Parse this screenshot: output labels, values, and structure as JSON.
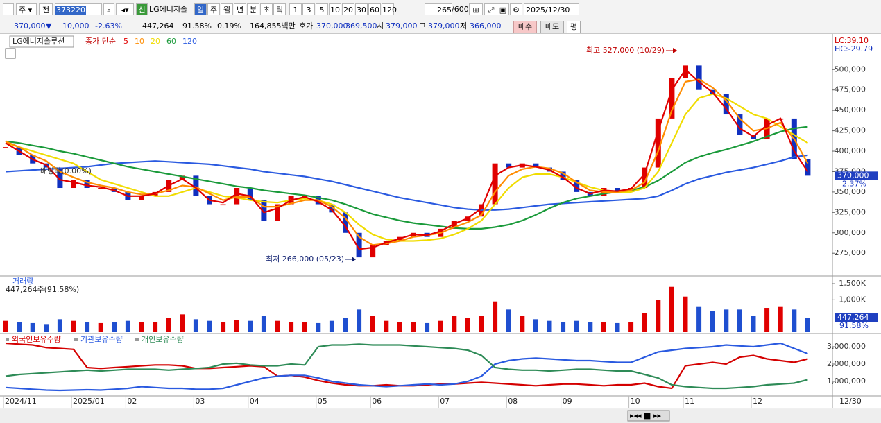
{
  "toolbar": {
    "market": "주",
    "prev": "전",
    "code": "373220",
    "new_badge": "신",
    "name": "LG에너지솔",
    "periods": [
      "일",
      "주",
      "월",
      "년",
      "분",
      "초",
      "틱"
    ],
    "intervals": [
      "1",
      "3",
      "5",
      "10",
      "20",
      "30",
      "60",
      "120"
    ],
    "count": "265",
    "count_max": "/600",
    "date": "2025/12/30"
  },
  "quote": {
    "price": "370,000",
    "arrow": "▼",
    "change": "10,000",
    "change_rate": "-2.63%",
    "volume": "447,264",
    "volume_ratio": "91.58%",
    "turnover": "0.19%",
    "amount": "164,855백만",
    "bid_label": "호가",
    "ask": "370,000",
    "bid": "369,500",
    "open_label": "시",
    "open": "379,000",
    "high_label": "고",
    "high": "379,000",
    "low_label": "저",
    "low": "366,000",
    "buy": "매수",
    "sell": "매도",
    "avg": "평"
  },
  "chart_data": [
    {
      "type": "candlestick",
      "title": "LG에너지솔루션",
      "legend_title": "종가 단순",
      "lc": "LC:39.10",
      "hc": "HC:-29.79",
      "current_label": "370,000",
      "current_change": "-2.37%",
      "dividend_note": "배당락(0.00%)",
      "high_note": "최고 527,000 (10/29)",
      "low_note": "최저 266,000 (05/23)",
      "up_color": "#e00000",
      "down_color": "#1030c0",
      "close": [
        405000,
        395000,
        385000,
        380000,
        355000,
        365000,
        355000,
        355000,
        350000,
        340000,
        345000,
        350000,
        365000,
        370000,
        345000,
        335000,
        335000,
        355000,
        340000,
        315000,
        335000,
        345000,
        345000,
        335000,
        325000,
        300000,
        270000,
        285000,
        290000,
        295000,
        300000,
        295000,
        305000,
        315000,
        320000,
        335000,
        385000,
        380000,
        385000,
        380000,
        375000,
        365000,
        350000,
        345000,
        355000,
        350000,
        355000,
        380000,
        440000,
        490000,
        505000,
        475000,
        470000,
        445000,
        420000,
        415000,
        440000,
        440000,
        390000,
        370000
      ],
      "series": [
        {
          "name": "120",
          "color": "#2a5ae0",
          "values": [
            375000,
            376000,
            377000,
            378000,
            379000,
            380000,
            381000,
            383000,
            385000,
            386000,
            387000,
            388000,
            387000,
            386000,
            385000,
            384000,
            382000,
            380000,
            378000,
            375000,
            373000,
            371000,
            369000,
            366000,
            363000,
            359000,
            355000,
            351000,
            347000,
            343000,
            340000,
            337000,
            334000,
            331000,
            329000,
            328000,
            328000,
            329000,
            331000,
            333000,
            335000,
            336000,
            337000,
            338000,
            339000,
            340000,
            341000,
            342000,
            345000,
            352000,
            360000,
            366000,
            370000,
            374000,
            377000,
            380000,
            384000,
            388000,
            393000,
            395000
          ]
        },
        {
          "name": "60",
          "color": "#1a9a3a",
          "values": [
            412000,
            410000,
            407000,
            404000,
            400000,
            397000,
            393000,
            389000,
            385000,
            381000,
            378000,
            375000,
            372000,
            369000,
            366000,
            363000,
            360000,
            357000,
            355000,
            352000,
            350000,
            348000,
            346000,
            343000,
            340000,
            335000,
            329000,
            323000,
            319000,
            315000,
            312000,
            310000,
            308000,
            306000,
            305000,
            305000,
            307000,
            310000,
            315000,
            322000,
            330000,
            337000,
            342000,
            345000,
            348000,
            350000,
            352000,
            356000,
            364000,
            375000,
            386000,
            393000,
            398000,
            402000,
            407000,
            412000,
            418000,
            424000,
            428000,
            430000
          ]
        },
        {
          "name": "20",
          "color": "#f0dc00",
          "values": [
            410000,
            405000,
            400000,
            395000,
            390000,
            385000,
            375000,
            365000,
            360000,
            355000,
            350000,
            345000,
            345000,
            350000,
            355000,
            350000,
            345000,
            343000,
            340000,
            338000,
            337000,
            340000,
            342000,
            340000,
            335000,
            325000,
            310000,
            298000,
            292000,
            290000,
            290000,
            291000,
            293000,
            298000,
            305000,
            315000,
            335000,
            355000,
            368000,
            372000,
            372000,
            368000,
            362000,
            356000,
            352000,
            350000,
            350000,
            355000,
            375000,
            410000,
            445000,
            465000,
            470000,
            465000,
            455000,
            445000,
            440000,
            430000,
            420000,
            410000
          ]
        },
        {
          "name": "10",
          "color": "#ff8c00",
          "values": [
            412000,
            405000,
            395000,
            388000,
            375000,
            368000,
            362000,
            358000,
            355000,
            350000,
            347000,
            348000,
            352000,
            358000,
            356000,
            348000,
            340000,
            344000,
            344000,
            332000,
            332000,
            336000,
            340000,
            340000,
            332000,
            318000,
            295000,
            285000,
            287000,
            290000,
            295000,
            297000,
            300000,
            307000,
            313000,
            322000,
            350000,
            370000,
            378000,
            381000,
            379000,
            373000,
            362000,
            352000,
            350000,
            350000,
            352000,
            362000,
            400000,
            450000,
            485000,
            488000,
            478000,
            462000,
            440000,
            425000,
            428000,
            435000,
            415000,
            385000
          ]
        },
        {
          "name": "5",
          "color": "#e00000",
          "values": [
            410000,
            400000,
            390000,
            383000,
            365000,
            362000,
            358000,
            356000,
            352000,
            345000,
            345000,
            348000,
            358000,
            366000,
            355000,
            340000,
            337000,
            348000,
            345000,
            325000,
            330000,
            340000,
            344000,
            338000,
            328000,
            308000,
            280000,
            282000,
            288000,
            293000,
            298000,
            297000,
            302000,
            311000,
            318000,
            330000,
            370000,
            380000,
            383000,
            381000,
            377000,
            368000,
            355000,
            348000,
            352000,
            351000,
            354000,
            372000,
            425000,
            475000,
            500000,
            485000,
            472000,
            452000,
            428000,
            418000,
            432000,
            440000,
            400000,
            375000
          ]
        }
      ],
      "ylim": [
        248000,
        541000
      ],
      "yticks": [
        {
          "value": 275000,
          "label": "275,000"
        },
        {
          "value": 300000,
          "label": "300,000"
        },
        {
          "value": 325000,
          "label": "325,000"
        },
        {
          "value": 350000,
          "label": "350,000"
        },
        {
          "value": 375000,
          "label": "375,000"
        },
        {
          "value": 400000,
          "label": "400,000"
        },
        {
          "value": 425000,
          "label": "425,000"
        },
        {
          "value": 450000,
          "label": "450,000"
        },
        {
          "value": 475000,
          "label": "475,000"
        },
        {
          "value": 500000,
          "label": "500,000"
        }
      ]
    },
    {
      "type": "bar",
      "title": "거래량",
      "subtitle": "447,264주(91.58%)",
      "current_label": "447,264",
      "current_ratio": "91.58%",
      "color": "#1f4fd0",
      "values": [
        350000,
        300000,
        280000,
        250000,
        400000,
        350000,
        300000,
        280000,
        300000,
        350000,
        300000,
        320000,
        450000,
        550000,
        400000,
        350000,
        300000,
        380000,
        350000,
        500000,
        350000,
        320000,
        300000,
        280000,
        350000,
        450000,
        700000,
        500000,
        350000,
        300000,
        300000,
        280000,
        350000,
        500000,
        450000,
        500000,
        950000,
        700000,
        500000,
        400000,
        350000,
        300000,
        350000,
        300000,
        300000,
        280000,
        300000,
        600000,
        1000000,
        1400000,
        1100000,
        800000,
        650000,
        700000,
        700000,
        500000,
        750000,
        800000,
        700000,
        450000
      ],
      "ylim": [
        0,
        1630000
      ],
      "yticks": [
        {
          "value": 1000000,
          "label": "1,000K"
        },
        {
          "value": 1500000,
          "label": "1,500K"
        }
      ]
    },
    {
      "type": "line",
      "categories": [
        "2024/11",
        null,
        null,
        null,
        null,
        "2025/01",
        null,
        null,
        null,
        "02",
        null,
        null,
        null,
        null,
        "03",
        null,
        null,
        null,
        "04",
        null,
        null,
        null,
        null,
        "05",
        null,
        null,
        null,
        "06",
        null,
        null,
        null,
        null,
        "07",
        null,
        null,
        null,
        null,
        "08",
        null,
        null,
        null,
        "09",
        null,
        null,
        null,
        null,
        "10",
        null,
        null,
        null,
        "11",
        null,
        null,
        null,
        null,
        "12",
        null,
        null,
        null,
        null
      ],
      "x_end_label": "12/30",
      "series": [
        {
          "name": "외국인보유수량",
          "color": "#d40000",
          "values": [
            3200000,
            3150000,
            3100000,
            2950000,
            2900000,
            2850000,
            1800000,
            1750000,
            1800000,
            1850000,
            1900000,
            1950000,
            1950000,
            1900000,
            1750000,
            1750000,
            1800000,
            1850000,
            1900000,
            1850000,
            1300000,
            1350000,
            1250000,
            1050000,
            900000,
            800000,
            750000,
            750000,
            800000,
            750000,
            750000,
            800000,
            850000,
            850000,
            900000,
            950000,
            900000,
            850000,
            800000,
            750000,
            800000,
            850000,
            850000,
            800000,
            750000,
            800000,
            800000,
            900000,
            700000,
            600000,
            1900000,
            2000000,
            2100000,
            2000000,
            2400000,
            2500000,
            2300000,
            2200000,
            2100000,
            2300000
          ]
        },
        {
          "name": "기관보유수량",
          "color": "#2a5ae0",
          "values": [
            650000,
            600000,
            550000,
            500000,
            480000,
            500000,
            520000,
            500000,
            550000,
            600000,
            700000,
            650000,
            600000,
            600000,
            550000,
            550000,
            600000,
            800000,
            1000000,
            1200000,
            1300000,
            1350000,
            1350000,
            1200000,
            1000000,
            900000,
            800000,
            750000,
            700000,
            750000,
            800000,
            850000,
            800000,
            850000,
            1000000,
            1300000,
            2000000,
            2200000,
            2300000,
            2350000,
            2300000,
            2250000,
            2200000,
            2200000,
            2150000,
            2100000,
            2100000,
            2400000,
            2700000,
            2800000,
            2900000,
            2950000,
            3000000,
            3100000,
            3050000,
            3000000,
            3100000,
            3200000,
            2900000,
            2600000
          ]
        },
        {
          "name": "개인보유수량",
          "color": "#2e8b57",
          "values": [
            1300000,
            1400000,
            1450000,
            1500000,
            1550000,
            1600000,
            1650000,
            1600000,
            1650000,
            1700000,
            1700000,
            1700000,
            1650000,
            1700000,
            1750000,
            1800000,
            2000000,
            2050000,
            1950000,
            1900000,
            1900000,
            2000000,
            1950000,
            3000000,
            3100000,
            3100000,
            3150000,
            3100000,
            3100000,
            3100000,
            3050000,
            3000000,
            2950000,
            2900000,
            2800000,
            2500000,
            1800000,
            1700000,
            1650000,
            1650000,
            1600000,
            1650000,
            1700000,
            1700000,
            1650000,
            1600000,
            1600000,
            1400000,
            1200000,
            800000,
            700000,
            650000,
            600000,
            600000,
            650000,
            700000,
            800000,
            850000,
            900000,
            1100000
          ]
        }
      ],
      "ylim": [
        200000,
        3600000
      ],
      "yticks": [
        {
          "value": 1000000,
          "label": "1,000,000"
        },
        {
          "value": 2000000,
          "label": "2,000,000"
        },
        {
          "value": 3000000,
          "label": "3,000,000"
        }
      ]
    }
  ]
}
